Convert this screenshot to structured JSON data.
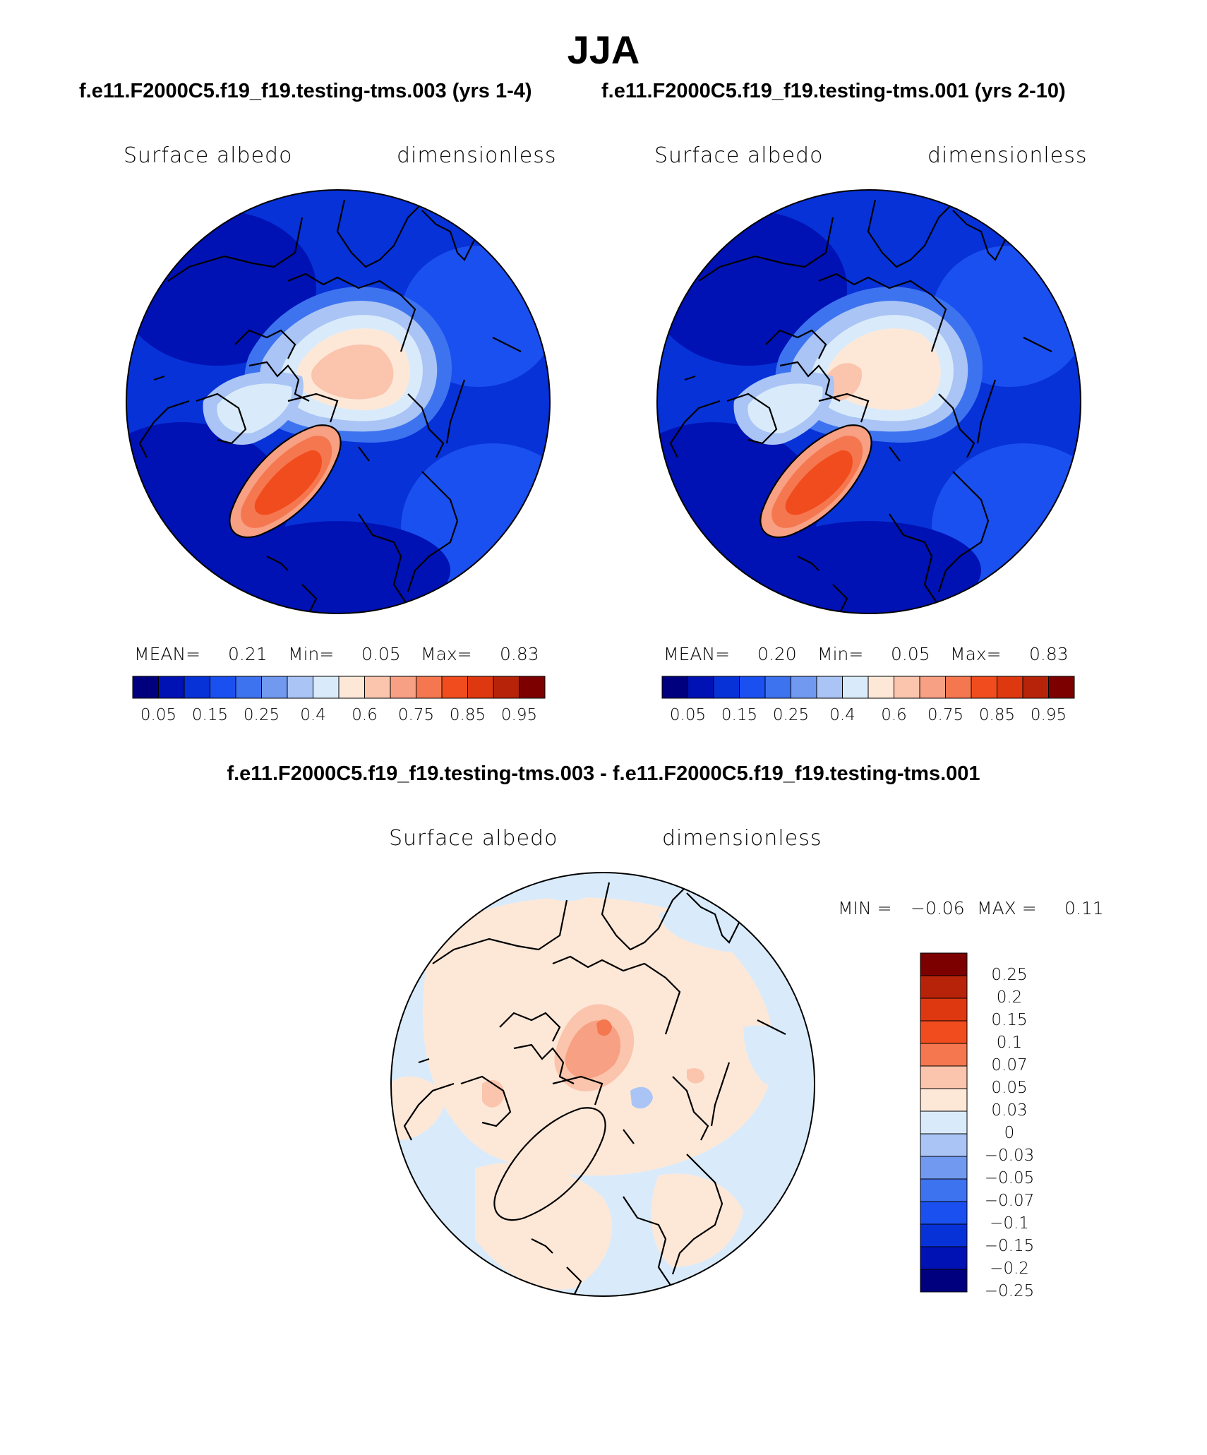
{
  "figure": {
    "title": "JJA",
    "panel_left": {
      "case_title": "f.e11.F2000C5.f19_f19.testing-tms.003 (yrs 1-4)",
      "variable": "Surface albedo",
      "units": "dimensionless",
      "mean_label": "MEAN=",
      "mean_value": "0.21",
      "min_label": "Min=",
      "min_value": "0.05",
      "max_label": "Max=",
      "max_value": "0.83"
    },
    "panel_right": {
      "case_title": "f.e11.F2000C5.f19_f19.testing-tms.001 (yrs 2-10)",
      "variable": "Surface albedo",
      "units": "dimensionless",
      "mean_label": "MEAN=",
      "mean_value": "0.20",
      "min_label": "Min=",
      "min_value": "0.05",
      "max_label": "Max=",
      "max_value": "0.83"
    },
    "panel_diff": {
      "case_title": "f.e11.F2000C5.f19_f19.testing-tms.003 - f.e11.F2000C5.f19_f19.testing-tms.001",
      "variable": "Surface albedo",
      "units": "dimensionless",
      "min_label": "MIN =",
      "min_value": "−0.06",
      "max_label": "MAX =",
      "max_value": "0.11"
    }
  },
  "colorbar_abs": {
    "colors": [
      "#00007e",
      "#0012b4",
      "#0732d8",
      "#1a50f0",
      "#3e73ef",
      "#7099ef",
      "#a9c4f5",
      "#d9ebfb",
      "#fde8d8",
      "#fbc4ac",
      "#f7a083",
      "#f5774f",
      "#f14c1e",
      "#de3810",
      "#b72308",
      "#7d0000"
    ],
    "tick_labels": [
      "0.05",
      "0.15",
      "0.25",
      "0.4",
      "0.6",
      "0.75",
      "0.85",
      "0.95"
    ]
  },
  "colorbar_diff": {
    "colors": [
      "#7d0000",
      "#b72308",
      "#de3810",
      "#f14c1e",
      "#f5774f",
      "#fbc4ac",
      "#fde8d8",
      "#d9ebfb",
      "#a9c4f5",
      "#7099ef",
      "#3e73ef",
      "#1a50f0",
      "#0732d8",
      "#0012b4",
      "#00007e"
    ],
    "tick_labels": [
      "0.25",
      "0.2",
      "0.15",
      "0.1",
      "0.07",
      "0.05",
      "0.03",
      "0",
      "−0.03",
      "−0.05",
      "−0.07",
      "−0.1",
      "−0.15",
      "−0.2",
      "−0.25"
    ]
  }
}
